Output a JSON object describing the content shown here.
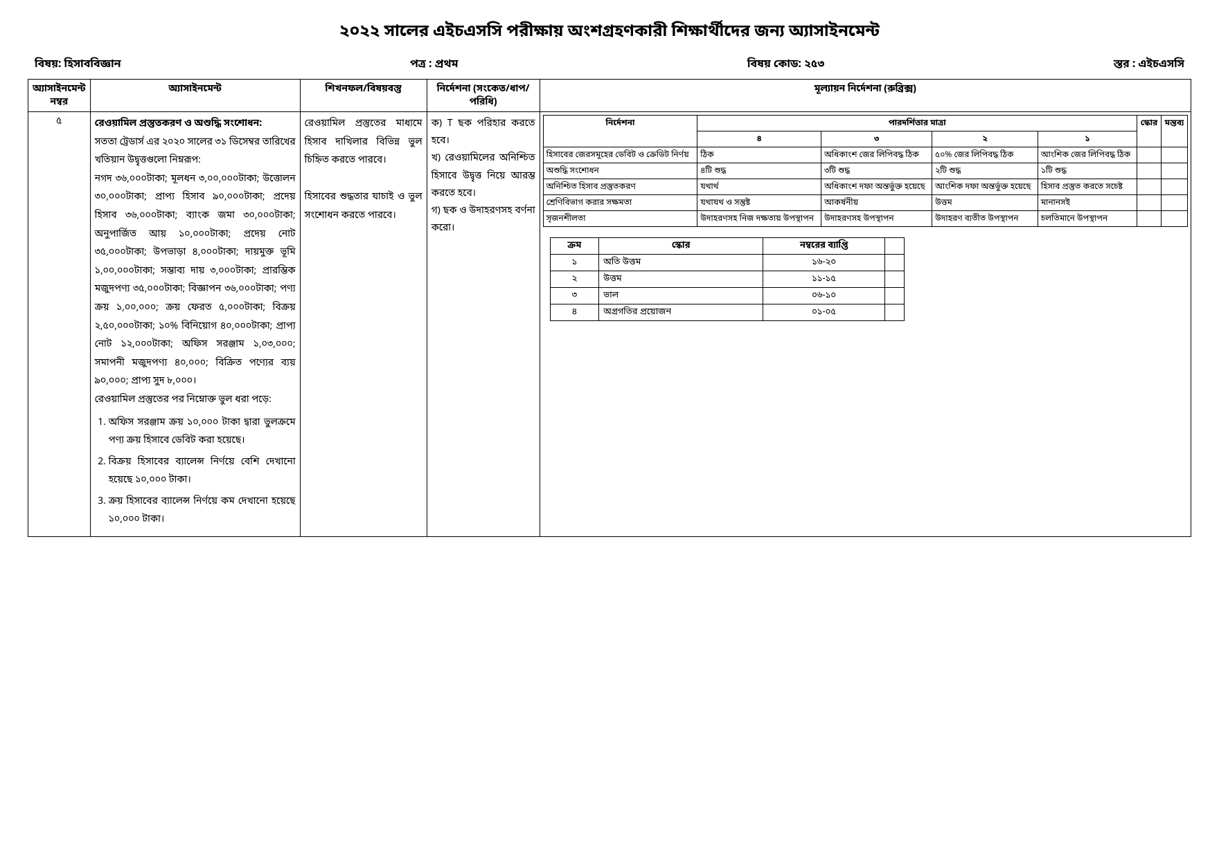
{
  "title": "২০২২ সালের এইচএসসি পরীক্ষায় অংশগ্রহণকারী শিক্ষার্থীদের জন্য অ্যাসাইনমেন্ট",
  "header": {
    "subject_label": "বিষয়: হিসাববিজ্ঞান",
    "paper_label": "পত্র : প্রথম",
    "code_label": "বিষয় কোড: ২৫৩",
    "level_label": "স্তর : এইচএসসি"
  },
  "columns": {
    "num": "অ্যাসাইনমেন্ট নম্বর",
    "assignment": "অ্যাসাইনমেন্ট",
    "learning": "শিখনফল/বিষয়বস্তু",
    "guidance": "নির্দেশনা (সংকেত/ধাপ/ পরিধি)",
    "rubric": "মূল্যায়ন নির্দেশনা (রুব্রিক্স)"
  },
  "row": {
    "num": "৫",
    "assignment_title": "রেওয়ামিল প্রস্তুতকরণ ও অশুদ্ধি সংশোধন:",
    "assignment_intro": "সততা ট্রেডার্স এর ২০২০ সালের ৩১ ডিসেম্বর তারিখের খতিয়ান উদ্বৃত্তগুলো নিম্নরূপ:",
    "assignment_body": "নগদ ৩৬,০০০টাকা; মূলধন ৩,০০,০০০টাকা; উত্তোলন ৩০,০০০টাকা; প্রাপ্য হিসাব ৯০,০০০টাকা; প্রদেয় হিসাব ৩৬,০০০টাকা; ব্যাংক জমা ৩০,০০০টাকা; অনুপার্জিত আয় ১০,০০০টাকা; প্রদেয় নোট ৩৫,০০০টাকা; উপভাড়া ৪,০০০টাকা; দায়মুক্ত ভূমি ১,০০,০০০টাকা; সম্ভাব্য দায় ৩,০০০টাকা; প্রারম্ভিক মজুদপণ্য ৩৫,০০০টাকা; বিজ্ঞাপন ৩৬,০০০টাকা; পণ্য ক্রয় ১,০০,০০০; ক্রয় ফেরত ৫,০০০টাকা; বিক্রয় ২,৫০,০০০টাকা; ১০% বিনিয়োগ ৪০,০০০টাকা; প্রাপ্য নোট ১২,০০০টাকা; অফিস সরঞ্জাম ১,০৩,০০০; সমাপনী মজুদপণ্য ৪০,০০০; বিক্রিত পণ্যের ব্যয় ৯০,০০০; প্রাপ্য সুদ ৮,০০০।",
    "errors_intro": "রেওয়ামিল প্রস্তুতের পর নিম্নোক্ত ভুল ধরা পড়ে:",
    "errors": [
      "অফিস সরঞ্জাম ক্রয় ১০,০০০ টাকা দ্বারা ভুলক্রমে পণ্য ক্রয় হিসাবে ডেবিট করা হয়েছে।",
      "বিক্রয় হিসাবের ব্যালেন্স নির্ণয়ে বেশি দেখানো হয়েছে ১০,০০০ টাকা।",
      "ক্রয় হিসাবের ব্যালেন্স নির্ণয়ে কম দেখানো হয়েছে ১০,০০০ টাকা।"
    ],
    "learning": "রেওয়ামিল প্রস্তুতের মাধ্যমে হিসাব দাখিলার বিভিন্ন ভুল চিহ্নিত করতে পারবে।",
    "learning2": "হিসাবের শুদ্ধতার যাচাই ও ভুল সংশোধন করতে পারবে।",
    "guidance_a": "ক) T ছক পরিহার করতে হবে।",
    "guidance_b": "খ) রেওয়ামিলের অনিশ্চিত হিসাবে উদ্বৃত্ত নিয়ে আরম্ভ করতে হবে।",
    "guidance_c": "গ) ছক ও উদাহরণসহ বর্ণনা করো।"
  },
  "rubric": {
    "headers": {
      "nirdeshona": "নির্দেশনা",
      "pardorshitar": "পারদর্শিতার মাত্রা",
      "montobbo": "মন্তব্য",
      "score": "স্কোর",
      "c4": "৪",
      "c3": "৩",
      "c2": "২",
      "c1": "১"
    },
    "rows": [
      {
        "n": "হিসাবের জেরসমূহের ডেবিট ও ক্রেডিট নির্ণয়",
        "v4": "ঠিক",
        "v3": "অধিকাংশ জের লিপিবদ্ধ ঠিক",
        "v2": "৫০% জের লিপিবদ্ধ ঠিক",
        "v1": "আংশিক জের লিপিবদ্ধ ঠিক"
      },
      {
        "n": "অশুদ্ধি সংশোধন",
        "v4": "৪টি শুদ্ধ",
        "v3": "৩টি শুদ্ধ",
        "v2": "২টি শুদ্ধ",
        "v1": "১টি শুদ্ধ"
      },
      {
        "n": "অনিশ্চিত হিসাব প্রস্তুতকরণ",
        "v4": "যথার্থ",
        "v3": "অধিকাংশ দফা অন্তর্ভুক্ত হয়েছে",
        "v2": "আংশিক দফা অন্তর্ভুক্ত হয়েছে",
        "v1": "হিসাব প্রস্তুত করতে সচেষ্ট"
      },
      {
        "n": "শ্রেণিবিভাগ করার সক্ষমতা",
        "v4": "যথাযথ ও সন্তুষ্ট",
        "v3": "আকর্ষনীয়",
        "v2": "উত্তম",
        "v1": "মানানসই"
      },
      {
        "n": "সৃজনশীলতা",
        "v4": "উদাহরণসহ নিজ দক্ষতায় উপস্থাপন",
        "v3": "উদাহরণসহ উপস্থাপন",
        "v2": "উদাহরণ ব্যতীত উপস্থাপন",
        "v1": "চলতিমানে উপস্থাপন"
      }
    ]
  },
  "score_table": {
    "headers": {
      "krom": "ক্রম",
      "score": "স্কোর",
      "range": "নম্বরের ব্যাপ্তি"
    },
    "rows": [
      {
        "k": "১",
        "s": "অতি উত্তম",
        "r": "১৬-২০"
      },
      {
        "k": "২",
        "s": "উত্তম",
        "r": "১১-১৫"
      },
      {
        "k": "৩",
        "s": "ভাল",
        "r": "০৬-১০"
      },
      {
        "k": "৪",
        "s": "অগ্রগতির প্রয়োজন",
        "r": "০১-০৫"
      }
    ]
  }
}
